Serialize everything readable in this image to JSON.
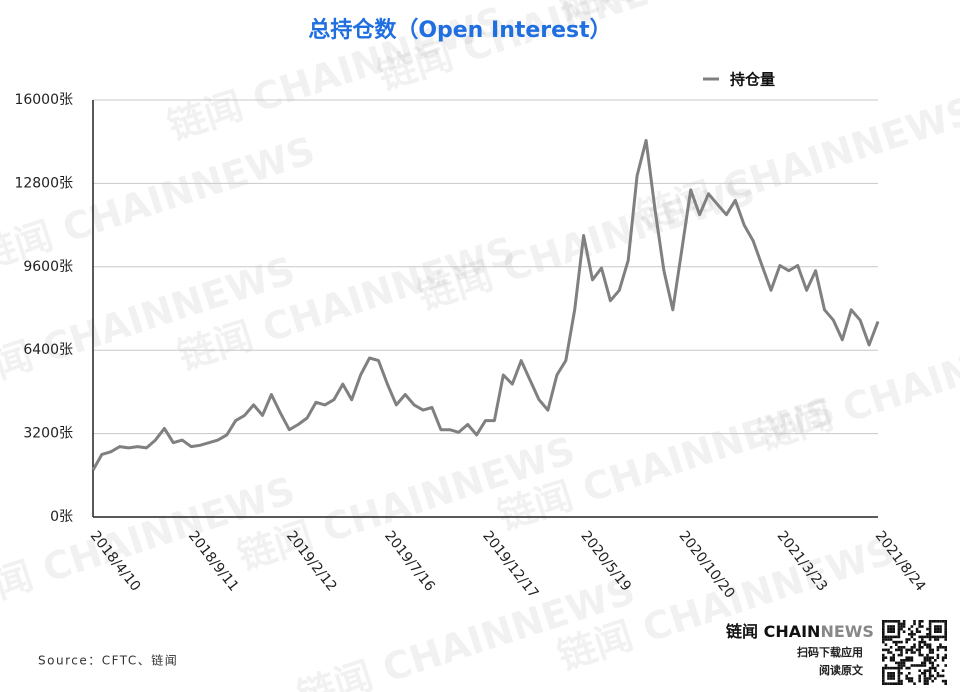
{
  "chart_data": {
    "type": "line",
    "title": "总持仓数（Open Interest）",
    "categories": [
      "2018/4/10",
      null,
      null,
      null,
      null,
      null,
      null,
      null,
      null,
      null,
      null,
      "2018/9/11",
      null,
      null,
      null,
      null,
      null,
      null,
      null,
      null,
      null,
      null,
      "2019/2/12",
      null,
      null,
      null,
      null,
      null,
      null,
      null,
      null,
      null,
      null,
      "2019/7/16",
      null,
      null,
      null,
      null,
      null,
      null,
      null,
      null,
      null,
      null,
      "2019/12/17",
      null,
      null,
      null,
      null,
      null,
      null,
      null,
      null,
      null,
      null,
      "2020/5/19",
      null,
      null,
      null,
      null,
      null,
      null,
      null,
      null,
      null,
      null,
      "2020/10/20",
      null,
      null,
      null,
      null,
      null,
      null,
      null,
      null,
      null,
      null,
      "2021/3/23",
      null,
      null,
      null,
      null,
      null,
      null,
      null,
      null,
      null,
      null,
      "2021/8/24"
    ],
    "series": [
      {
        "name": "持仓量",
        "color": "#808080",
        "values": [
          1800,
          2400,
          2500,
          2700,
          2650,
          2700,
          2650,
          2950,
          3400,
          2850,
          2950,
          2700,
          2750,
          2850,
          2950,
          3150,
          3700,
          3900,
          4300,
          3900,
          4700,
          4000,
          3350,
          3550,
          3800,
          4400,
          4300,
          4500,
          5100,
          4500,
          5450,
          6100,
          6000,
          5100,
          4300,
          4700,
          4300,
          4100,
          4200,
          3350,
          3350,
          3250,
          3550,
          3150,
          3700,
          3700,
          5450,
          5100,
          6000,
          5250,
          4500,
          4100,
          5450,
          6000,
          7950,
          10800,
          9100,
          9550,
          8300,
          8700,
          9850,
          13100,
          14450,
          11800,
          9450,
          7950,
          10250,
          12550,
          11600,
          12400,
          12000,
          11600,
          12150,
          11200,
          10600,
          9650,
          8700,
          9650,
          9450,
          9650,
          8700,
          9450,
          7950,
          7550,
          6800,
          7950,
          7550,
          6600,
          7500
        ]
      }
    ],
    "ylim": [
      0,
      16000
    ],
    "yticks": [
      {
        "value": 0,
        "label": "0张"
      },
      {
        "value": 3200,
        "label": "3200张"
      },
      {
        "value": 6400,
        "label": "6400张"
      },
      {
        "value": 9600,
        "label": "9600张"
      },
      {
        "value": 12800,
        "label": "12800张"
      },
      {
        "value": 16000,
        "label": "16000张"
      }
    ],
    "grid": true,
    "legend": "top-right",
    "source": "Source：CFTC、链闻",
    "brand": "链闻 CHAIN",
    "brand_suffix": "NEWS",
    "cta_download": "扫码下载应用",
    "cta_read": "阅读原文",
    "watermark": "链闻 CHAINNEWS"
  }
}
